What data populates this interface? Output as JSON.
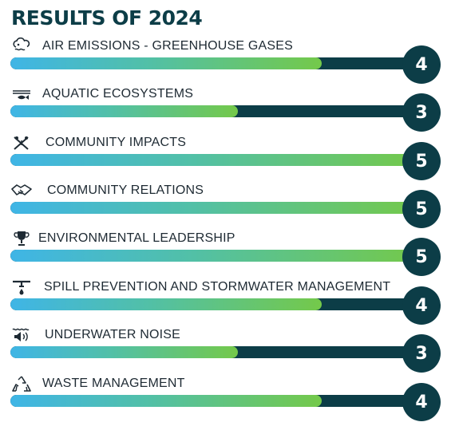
{
  "title": "RESULTS OF 2024",
  "colors": {
    "dark": "#0c3d47",
    "gradient_start": "#3fb5e6",
    "gradient_mid": "#52c0a6",
    "gradient_end": "#74c94a"
  },
  "chart_data": {
    "type": "bar",
    "title": "RESULTS OF 2024",
    "ylim": [
      0,
      5
    ],
    "categories": [
      "AIR EMISSIONS - GREENHOUSE GASES",
      "AQUATIC ECOSYSTEMS",
      "COMMUNITY IMPACTS",
      "COMMUNITY RELATIONS",
      "ENVIRONMENTAL LEADERSHIP",
      "SPILL PREVENTION AND STORMWATER MANAGEMENT",
      "UNDERWATER NOISE",
      "WASTE MANAGEMENT"
    ],
    "values": [
      4,
      3,
      5,
      5,
      5,
      4,
      3,
      4
    ],
    "icons": [
      "cloud-emissions-icon",
      "water-fish-icon",
      "community-impacts-icon",
      "handshake-icon",
      "trophy-icon",
      "pipe-drop-icon",
      "speaker-waves-icon",
      "recycle-icon"
    ]
  }
}
